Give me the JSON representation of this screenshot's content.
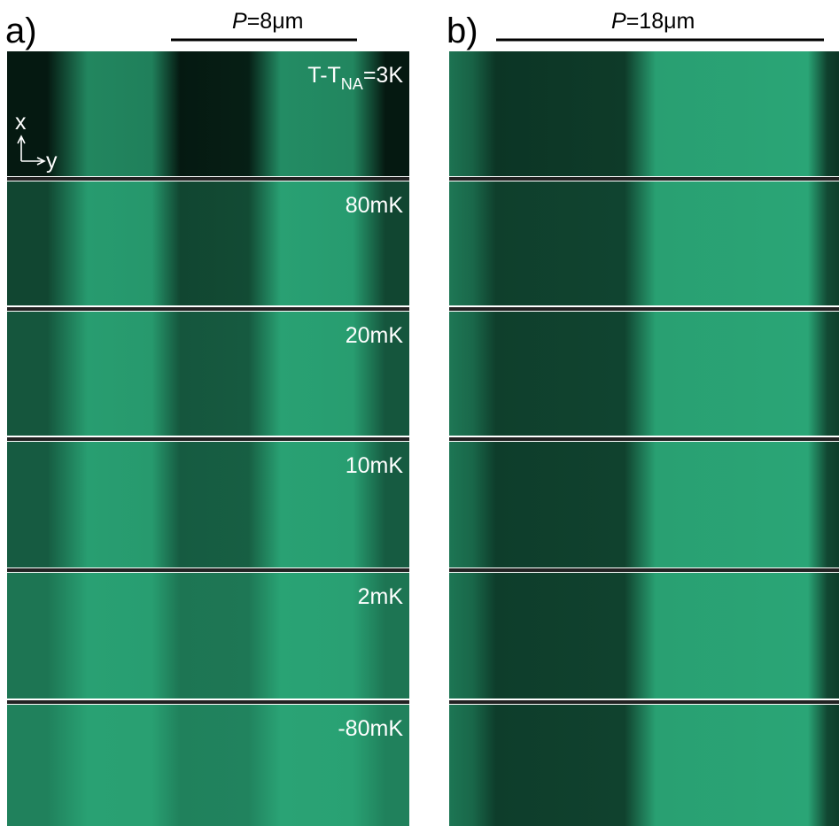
{
  "panel_a": {
    "label": "a)",
    "period": {
      "symbol": "P",
      "text": "=8μm"
    },
    "first_label": {
      "text": "T-T",
      "subscript": "NA",
      "suffix": "=3K"
    },
    "labels": [
      "80mK",
      "20mK",
      "10mK",
      "2mK",
      "-80mK"
    ],
    "axes": {
      "x": "x",
      "y": "y"
    }
  },
  "panel_b": {
    "label": "b)",
    "period": {
      "symbol": "P",
      "text": "=18μm"
    }
  }
}
